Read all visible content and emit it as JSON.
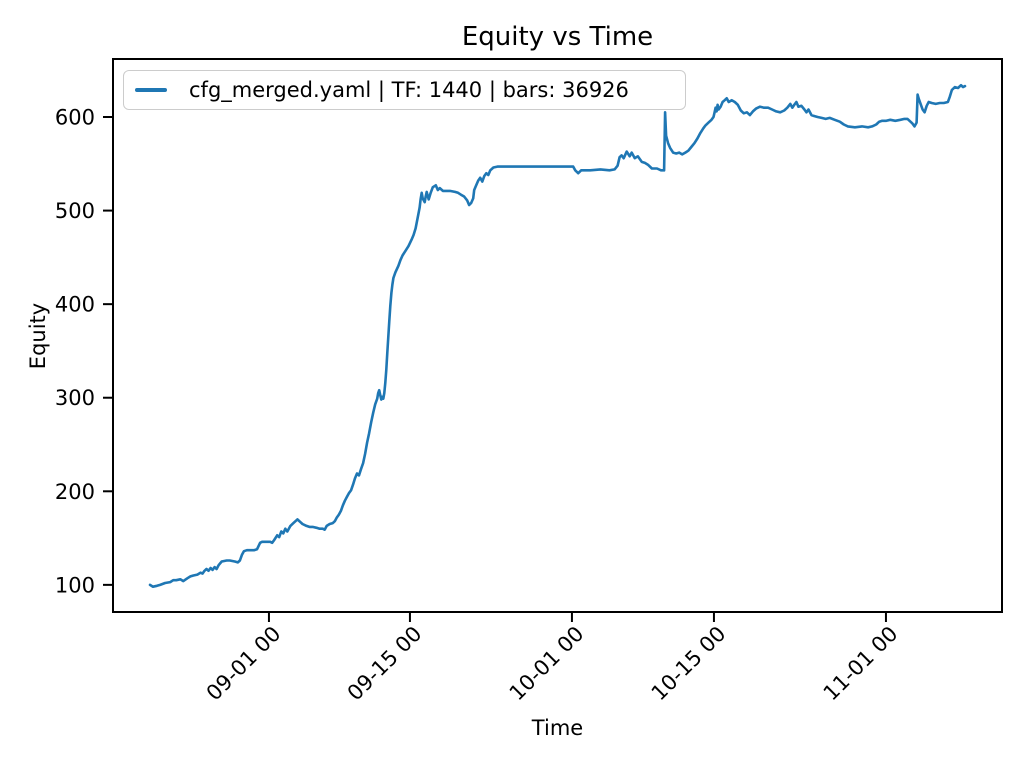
{
  "chart_data": {
    "type": "line",
    "title": "Equity vs Time",
    "xlabel": "Time",
    "ylabel": "Equity",
    "grid": false,
    "legend": {
      "position": "upper left",
      "entries": [
        {
          "label": "cfg_merged.yaml | TF: 1440 | bars: 36926",
          "color": "#1f77b4"
        }
      ]
    },
    "x_axis": {
      "unit": "days from first data point",
      "lim": [
        -3.66,
        84.36
      ],
      "tick_rotation_deg": 45,
      "ticks": [
        {
          "d": 11.78,
          "label": "09-01 00"
        },
        {
          "d": 25.74,
          "label": "09-15 00"
        },
        {
          "d": 41.78,
          "label": "10-01 00"
        },
        {
          "d": 55.84,
          "label": "10-15 00"
        },
        {
          "d": 72.87,
          "label": "11-01 00"
        }
      ]
    },
    "y_axis": {
      "lim": [
        71,
        662
      ],
      "ticks": [
        100,
        200,
        300,
        400,
        500,
        600
      ]
    },
    "series": [
      {
        "name": "cfg_merged.yaml | TF: 1440 | bars: 36926",
        "color": "#1f77b4",
        "line_width": 2.6,
        "points": [
          [
            0,
            100
          ],
          [
            0.3,
            98
          ],
          [
            0.7,
            99
          ],
          [
            1,
            100
          ],
          [
            1.5,
            102
          ],
          [
            2,
            103
          ],
          [
            2.3,
            105
          ],
          [
            2.6,
            105
          ],
          [
            3,
            106
          ],
          [
            3.3,
            104
          ],
          [
            3.7,
            107
          ],
          [
            4,
            109
          ],
          [
            4.3,
            110
          ],
          [
            4.7,
            111
          ],
          [
            5,
            113
          ],
          [
            5.2,
            112
          ],
          [
            5.4,
            115
          ],
          [
            5.6,
            117
          ],
          [
            5.8,
            115
          ],
          [
            6,
            118
          ],
          [
            6.2,
            116
          ],
          [
            6.4,
            119
          ],
          [
            6.6,
            117
          ],
          [
            6.8,
            121
          ],
          [
            7.1,
            125
          ],
          [
            7.6,
            126
          ],
          [
            7.9,
            126
          ],
          [
            8.4,
            125
          ],
          [
            8.7,
            124
          ],
          [
            8.9,
            126
          ],
          [
            9.1,
            132
          ],
          [
            9.3,
            136
          ],
          [
            9.6,
            137
          ],
          [
            9.9,
            137
          ],
          [
            10.3,
            137
          ],
          [
            10.6,
            138
          ],
          [
            10.9,
            145
          ],
          [
            11.1,
            146
          ],
          [
            11.5,
            146
          ],
          [
            11.9,
            146
          ],
          [
            12.1,
            145
          ],
          [
            12.3,
            148
          ],
          [
            12.6,
            153
          ],
          [
            12.8,
            151
          ],
          [
            13,
            157
          ],
          [
            13.2,
            155
          ],
          [
            13.4,
            160
          ],
          [
            13.6,
            157
          ],
          [
            13.9,
            163
          ],
          [
            14.2,
            166
          ],
          [
            14.6,
            170
          ],
          [
            14.9,
            167
          ],
          [
            15.1,
            165
          ],
          [
            15.5,
            163
          ],
          [
            15.8,
            162
          ],
          [
            16.1,
            162
          ],
          [
            16.5,
            161
          ],
          [
            16.8,
            160
          ],
          [
            17.1,
            160
          ],
          [
            17.3,
            159
          ],
          [
            17.5,
            163
          ],
          [
            17.8,
            165
          ],
          [
            18.1,
            166
          ],
          [
            18.3,
            168
          ],
          [
            18.5,
            172
          ],
          [
            18.7,
            175
          ],
          [
            18.9,
            179
          ],
          [
            19.1,
            185
          ],
          [
            19.3,
            190
          ],
          [
            19.5,
            194
          ],
          [
            19.7,
            198
          ],
          [
            19.9,
            201
          ],
          [
            20.1,
            207
          ],
          [
            20.3,
            214
          ],
          [
            20.5,
            219
          ],
          [
            20.7,
            217
          ],
          [
            20.9,
            224
          ],
          [
            21.1,
            230
          ],
          [
            21.3,
            240
          ],
          [
            21.5,
            252
          ],
          [
            21.7,
            262
          ],
          [
            21.9,
            274
          ],
          [
            22.1,
            284
          ],
          [
            22.3,
            293
          ],
          [
            22.5,
            299
          ],
          [
            22.6,
            305
          ],
          [
            22.7,
            308
          ],
          [
            22.8,
            303
          ],
          [
            22.9,
            298
          ],
          [
            23,
            301
          ],
          [
            23.1,
            299
          ],
          [
            23.2,
            305
          ],
          [
            23.3,
            316
          ],
          [
            23.4,
            330
          ],
          [
            23.5,
            348
          ],
          [
            23.6,
            365
          ],
          [
            23.7,
            382
          ],
          [
            23.8,
            398
          ],
          [
            23.9,
            412
          ],
          [
            24,
            421
          ],
          [
            24.1,
            428
          ],
          [
            24.3,
            434
          ],
          [
            24.6,
            441
          ],
          [
            24.8,
            447
          ],
          [
            25,
            452
          ],
          [
            25.3,
            457
          ],
          [
            25.6,
            462
          ],
          [
            25.9,
            469
          ],
          [
            26.1,
            474
          ],
          [
            26.3,
            481
          ],
          [
            26.5,
            492
          ],
          [
            26.7,
            503
          ],
          [
            26.8,
            512
          ],
          [
            26.9,
            519
          ],
          [
            27,
            513
          ],
          [
            27.2,
            509
          ],
          [
            27.3,
            515
          ],
          [
            27.4,
            520
          ],
          [
            27.6,
            512
          ],
          [
            27.8,
            519
          ],
          [
            28,
            525
          ],
          [
            28.3,
            527
          ],
          [
            28.5,
            522
          ],
          [
            28.7,
            524
          ],
          [
            29,
            521
          ],
          [
            29.4,
            521
          ],
          [
            29.7,
            521
          ],
          [
            30.2,
            520
          ],
          [
            30.5,
            519
          ],
          [
            30.8,
            517
          ],
          [
            31.1,
            515
          ],
          [
            31.4,
            511
          ],
          [
            31.6,
            506
          ],
          [
            31.8,
            508
          ],
          [
            32,
            513
          ],
          [
            32.1,
            522
          ],
          [
            32.3,
            527
          ],
          [
            32.5,
            532
          ],
          [
            32.7,
            535
          ],
          [
            32.9,
            531
          ],
          [
            33.1,
            537
          ],
          [
            33.3,
            540
          ],
          [
            33.5,
            538
          ],
          [
            33.7,
            543
          ],
          [
            34,
            546
          ],
          [
            34.4,
            547
          ],
          [
            35.1,
            547
          ],
          [
            36.1,
            547
          ],
          [
            37.1,
            547
          ],
          [
            38.1,
            547
          ],
          [
            39.1,
            547
          ],
          [
            40.1,
            547
          ],
          [
            41.1,
            547
          ],
          [
            41.9,
            547
          ],
          [
            42.1,
            543
          ],
          [
            42.4,
            540
          ],
          [
            42.7,
            543
          ],
          [
            43.6,
            543
          ],
          [
            44.6,
            544
          ],
          [
            45.5,
            543
          ],
          [
            46,
            544
          ],
          [
            46.3,
            548
          ],
          [
            46.5,
            557
          ],
          [
            46.7,
            559
          ],
          [
            46.9,
            556
          ],
          [
            47.2,
            563
          ],
          [
            47.5,
            558
          ],
          [
            47.7,
            562
          ],
          [
            48,
            556
          ],
          [
            48.3,
            558
          ],
          [
            48.7,
            552
          ],
          [
            49,
            551
          ],
          [
            49.3,
            549
          ],
          [
            49.7,
            545
          ],
          [
            50.2,
            545
          ],
          [
            50.6,
            543
          ],
          [
            50.9,
            543
          ],
          [
            51,
            605
          ],
          [
            51.1,
            580
          ],
          [
            51.3,
            572
          ],
          [
            51.5,
            567
          ],
          [
            51.8,
            562
          ],
          [
            52.1,
            561
          ],
          [
            52.4,
            562
          ],
          [
            52.7,
            560
          ],
          [
            53,
            562
          ],
          [
            53.3,
            564
          ],
          [
            53.6,
            568
          ],
          [
            53.9,
            572
          ],
          [
            54.2,
            577
          ],
          [
            54.5,
            583
          ],
          [
            54.8,
            588
          ],
          [
            55,
            591
          ],
          [
            55.3,
            594
          ],
          [
            55.6,
            597
          ],
          [
            55.8,
            600
          ],
          [
            55.9,
            605
          ],
          [
            56,
            610
          ],
          [
            56.1,
            606
          ],
          [
            56.2,
            613
          ],
          [
            56.3,
            608
          ],
          [
            56.5,
            611
          ],
          [
            56.7,
            616
          ],
          [
            56.9,
            618
          ],
          [
            57.1,
            620
          ],
          [
            57.3,
            616
          ],
          [
            57.6,
            618
          ],
          [
            57.9,
            616
          ],
          [
            58.2,
            613
          ],
          [
            58.5,
            607
          ],
          [
            58.8,
            604
          ],
          [
            59.1,
            605
          ],
          [
            59.4,
            602
          ],
          [
            59.7,
            606
          ],
          [
            60,
            609
          ],
          [
            60.4,
            611
          ],
          [
            60.8,
            610
          ],
          [
            61.2,
            610
          ],
          [
            61.6,
            608
          ],
          [
            62,
            606
          ],
          [
            62.4,
            605
          ],
          [
            62.8,
            607
          ],
          [
            63.1,
            610
          ],
          [
            63.4,
            614
          ],
          [
            63.6,
            610
          ],
          [
            63.8,
            613
          ],
          [
            64,
            616
          ],
          [
            64.2,
            611
          ],
          [
            64.5,
            612
          ],
          [
            64.8,
            608
          ],
          [
            65,
            605
          ],
          [
            65.2,
            608
          ],
          [
            65.5,
            602
          ],
          [
            65.8,
            601
          ],
          [
            66.1,
            600
          ],
          [
            66.5,
            599
          ],
          [
            66.9,
            598
          ],
          [
            67.3,
            599
          ],
          [
            67.8,
            597
          ],
          [
            68.3,
            595
          ],
          [
            68.7,
            592
          ],
          [
            69.1,
            590
          ],
          [
            69.8,
            589
          ],
          [
            70.5,
            590
          ],
          [
            71.1,
            589
          ],
          [
            71.5,
            590
          ],
          [
            71.9,
            592
          ],
          [
            72.2,
            595
          ],
          [
            72.5,
            596
          ],
          [
            72.9,
            596
          ],
          [
            73.3,
            597
          ],
          [
            73.8,
            596
          ],
          [
            74.3,
            597
          ],
          [
            74.7,
            598
          ],
          [
            75,
            598
          ],
          [
            75.3,
            595
          ],
          [
            75.5,
            593
          ],
          [
            75.7,
            590
          ],
          [
            75.9,
            594
          ],
          [
            76,
            624
          ],
          [
            76.1,
            620
          ],
          [
            76.3,
            614
          ],
          [
            76.5,
            608
          ],
          [
            76.7,
            605
          ],
          [
            76.9,
            612
          ],
          [
            77.1,
            616
          ],
          [
            77.4,
            615
          ],
          [
            77.8,
            614
          ],
          [
            78.2,
            615
          ],
          [
            78.6,
            615
          ],
          [
            79,
            616
          ],
          [
            79.2,
            622
          ],
          [
            79.4,
            629
          ],
          [
            79.7,
            632
          ],
          [
            80,
            631
          ],
          [
            80.3,
            634
          ],
          [
            80.5,
            632
          ],
          [
            80.7,
            633
          ]
        ]
      }
    ]
  }
}
